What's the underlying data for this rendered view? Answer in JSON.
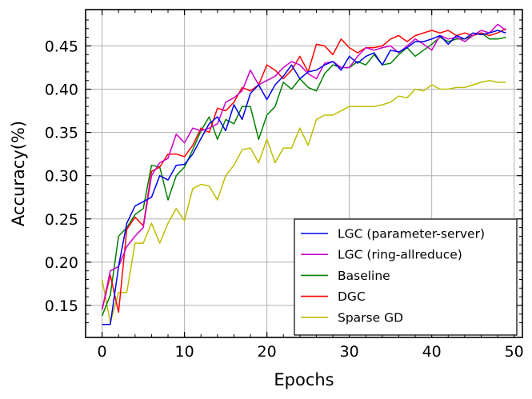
{
  "chart_data": {
    "type": "line",
    "title": "",
    "xlabel": "Epochs",
    "ylabel": "Accuracy(%)",
    "xlim": [
      -2,
      51
    ],
    "ylim": [
      0.113,
      0.492
    ],
    "xticks": [
      0,
      10,
      20,
      30,
      40,
      50
    ],
    "yticks": [
      0.15,
      0.2,
      0.25,
      0.3,
      0.35,
      0.4,
      0.45
    ],
    "ytick_labels": [
      "0.15",
      "0.20",
      "0.25",
      "0.30",
      "0.35",
      "0.40",
      "0.45"
    ],
    "grid": true,
    "legend_position": "bottom-right",
    "x": [
      0,
      1,
      2,
      3,
      4,
      5,
      6,
      7,
      8,
      9,
      10,
      11,
      12,
      13,
      14,
      15,
      16,
      17,
      18,
      19,
      20,
      21,
      22,
      23,
      24,
      25,
      26,
      27,
      28,
      29,
      30,
      31,
      32,
      33,
      34,
      35,
      36,
      37,
      38,
      39,
      40,
      41,
      42,
      43,
      44,
      45,
      46,
      47,
      48,
      49
    ],
    "series": [
      {
        "name": "LGC (parameter-server)",
        "color": "#0000ee",
        "values": [
          0.128,
          0.128,
          0.195,
          0.245,
          0.265,
          0.27,
          0.275,
          0.3,
          0.295,
          0.312,
          0.313,
          0.325,
          0.343,
          0.36,
          0.368,
          0.352,
          0.382,
          0.365,
          0.395,
          0.405,
          0.388,
          0.405,
          0.415,
          0.428,
          0.412,
          0.42,
          0.422,
          0.428,
          0.432,
          0.422,
          0.438,
          0.43,
          0.438,
          0.442,
          0.428,
          0.445,
          0.443,
          0.448,
          0.455,
          0.455,
          0.458,
          0.462,
          0.452,
          0.462,
          0.458,
          0.465,
          0.463,
          0.465,
          0.468,
          0.465
        ]
      },
      {
        "name": "LGC (ring-allreduce)",
        "color": "#cc00cc",
        "values": [
          0.145,
          0.19,
          0.195,
          0.218,
          0.23,
          0.24,
          0.3,
          0.315,
          0.32,
          0.348,
          0.338,
          0.355,
          0.352,
          0.355,
          0.36,
          0.385,
          0.39,
          0.398,
          0.422,
          0.405,
          0.41,
          0.415,
          0.425,
          0.432,
          0.428,
          0.418,
          0.412,
          0.43,
          0.432,
          0.425,
          0.425,
          0.438,
          0.448,
          0.445,
          0.448,
          0.45,
          0.442,
          0.45,
          0.458,
          0.452,
          0.445,
          0.462,
          0.458,
          0.46,
          0.455,
          0.462,
          0.468,
          0.465,
          0.475,
          0.468
        ]
      },
      {
        "name": "Baseline",
        "color": "#008000",
        "values": [
          0.138,
          0.162,
          0.23,
          0.24,
          0.255,
          0.262,
          0.312,
          0.31,
          0.272,
          0.3,
          0.31,
          0.33,
          0.352,
          0.368,
          0.342,
          0.365,
          0.36,
          0.38,
          0.38,
          0.342,
          0.37,
          0.38,
          0.408,
          0.4,
          0.412,
          0.402,
          0.398,
          0.418,
          0.428,
          0.425,
          0.425,
          0.432,
          0.428,
          0.44,
          0.428,
          0.43,
          0.44,
          0.448,
          0.438,
          0.445,
          0.452,
          0.46,
          0.455,
          0.458,
          0.458,
          0.462,
          0.465,
          0.458,
          0.458,
          0.46
        ]
      },
      {
        "name": "DGC",
        "color": "#ff0000",
        "values": [
          0.145,
          0.185,
          0.142,
          0.238,
          0.252,
          0.242,
          0.305,
          0.31,
          0.325,
          0.325,
          0.322,
          0.335,
          0.355,
          0.35,
          0.378,
          0.375,
          0.385,
          0.402,
          0.398,
          0.405,
          0.428,
          0.422,
          0.412,
          0.422,
          0.438,
          0.42,
          0.452,
          0.45,
          0.44,
          0.458,
          0.448,
          0.442,
          0.448,
          0.448,
          0.45,
          0.458,
          0.462,
          0.455,
          0.462,
          0.465,
          0.468,
          0.465,
          0.468,
          0.462,
          0.465,
          0.462,
          0.465,
          0.462,
          0.465,
          0.47
        ]
      },
      {
        "name": "Sparse GD",
        "color": "#bdbd00",
        "values": [
          0.18,
          0.13,
          0.165,
          0.165,
          0.222,
          0.222,
          0.245,
          0.222,
          0.245,
          0.262,
          0.248,
          0.285,
          0.29,
          0.288,
          0.272,
          0.3,
          0.312,
          0.33,
          0.332,
          0.315,
          0.342,
          0.315,
          0.332,
          0.332,
          0.355,
          0.335,
          0.365,
          0.37,
          0.37,
          0.375,
          0.38,
          0.38,
          0.38,
          0.38,
          0.382,
          0.385,
          0.392,
          0.39,
          0.4,
          0.398,
          0.405,
          0.4,
          0.4,
          0.402,
          0.402,
          0.405,
          0.408,
          0.41,
          0.408,
          0.408
        ]
      }
    ]
  }
}
